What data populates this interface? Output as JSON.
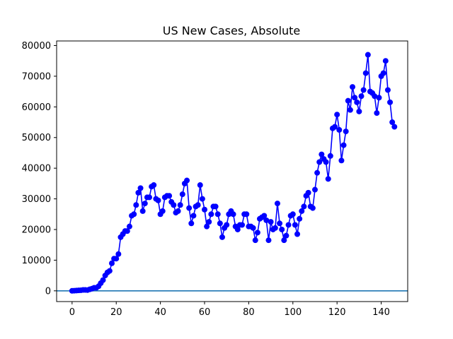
{
  "chart_data": {
    "type": "line",
    "title": "US New Cases, Absolute",
    "xlabel": "",
    "ylabel": "",
    "xlim": [
      -7,
      152
    ],
    "ylim": [
      -3500,
      81500
    ],
    "xticks": [
      0,
      20,
      40,
      60,
      80,
      100,
      120,
      140
    ],
    "yticks": [
      0,
      10000,
      20000,
      30000,
      40000,
      50000,
      60000,
      70000,
      80000
    ],
    "grid": false,
    "legend": "none",
    "baseline": 0,
    "colors": {
      "series": "#0000ff",
      "baseline": "#1f77b4",
      "axes": "#000000"
    },
    "series": [
      {
        "marker": "circle",
        "values": [
          0,
          50,
          100,
          150,
          200,
          300,
          300,
          250,
          500,
          700,
          1000,
          1000,
          1500,
          2500,
          3500,
          5000,
          6000,
          6500,
          9000,
          10500,
          10500,
          12000,
          17500,
          18500,
          19500,
          19500,
          21000,
          24500,
          25000,
          28000,
          32000,
          33500,
          26000,
          28500,
          30500,
          30500,
          34000,
          34500,
          30000,
          29500,
          25000,
          26000,
          30500,
          31000,
          31000,
          29000,
          28000,
          25500,
          26000,
          28000,
          31500,
          35000,
          36000,
          27000,
          22000,
          24500,
          27500,
          28000,
          34500,
          30000,
          26500,
          21000,
          22500,
          25000,
          27500,
          27500,
          25000,
          22000,
          17500,
          20500,
          21500,
          25000,
          26000,
          25000,
          21000,
          20000,
          21500,
          21500,
          25000,
          25000,
          21000,
          21000,
          20500,
          16500,
          19000,
          23500,
          24000,
          24500,
          23000,
          16500,
          22500,
          20000,
          20500,
          28500,
          22000,
          20000,
          16500,
          18000,
          21500,
          24500,
          25000,
          21500,
          18500,
          23500,
          26000,
          27500,
          31000,
          32000,
          27500,
          27000,
          33000,
          38500,
          42000,
          44500,
          43000,
          42000,
          36500,
          44000,
          53000,
          53500,
          57500,
          52500,
          42500,
          47500,
          52000,
          62000,
          59000,
          66500,
          63000,
          61500,
          58500,
          63500,
          65500,
          71000,
          77000,
          65000,
          64500,
          63500,
          58000,
          63000,
          70000,
          71000,
          75000,
          65500,
          61500,
          55000,
          53500
        ]
      }
    ]
  }
}
